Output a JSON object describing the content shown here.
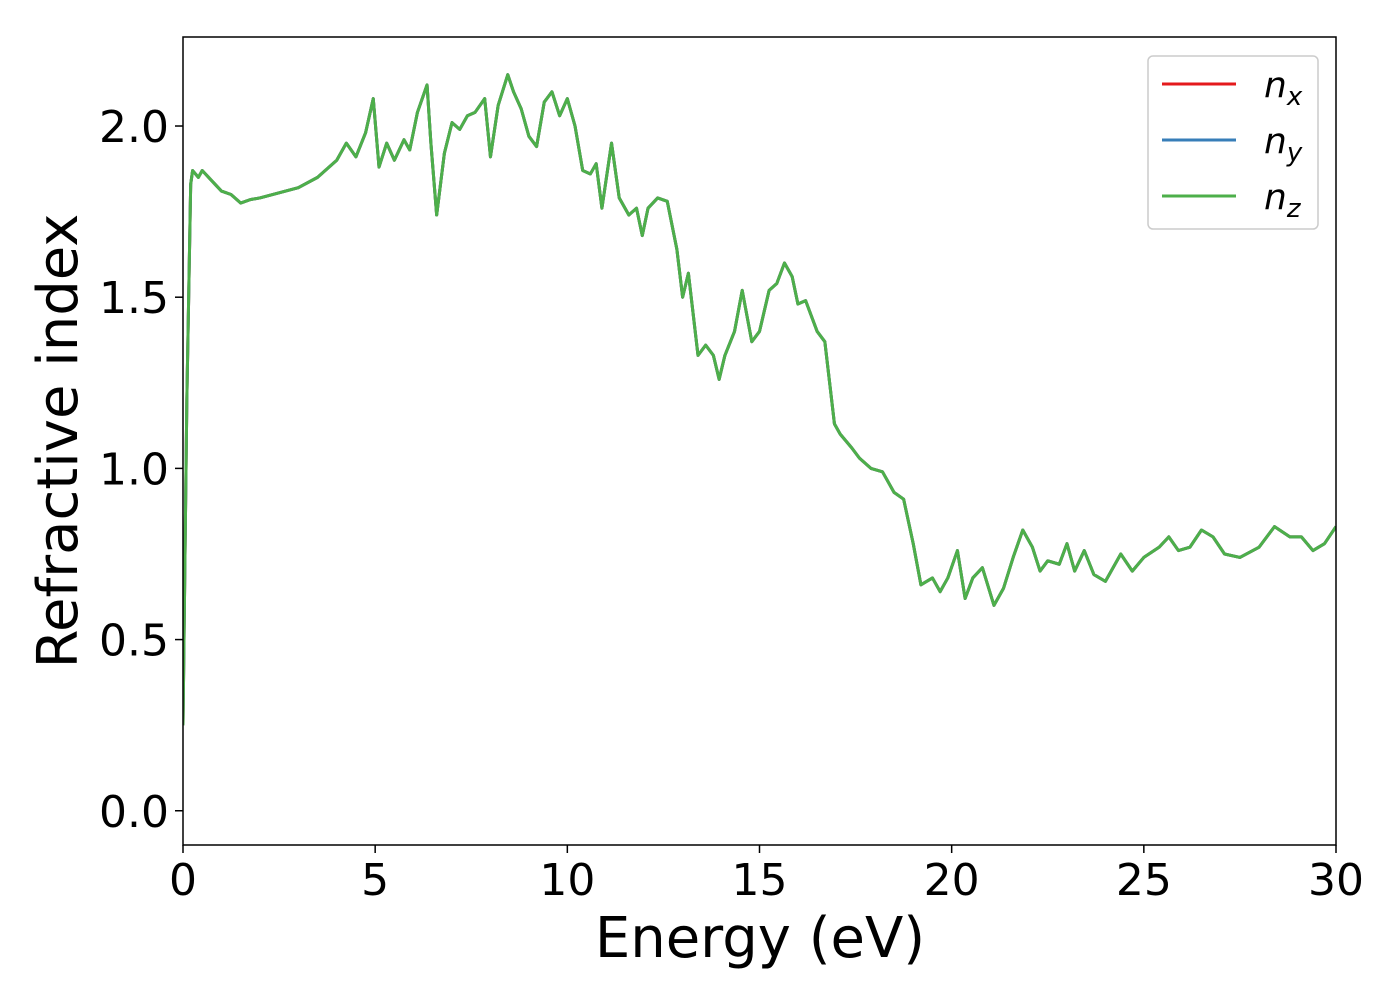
{
  "chart_data": {
    "type": "line",
    "xlabel": "Energy (eV)",
    "ylabel": "Refractive index",
    "x": [
      0,
      0.1,
      0.2,
      0.25,
      0.4,
      0.5,
      0.75,
      1.0,
      1.25,
      1.5,
      1.75,
      2.0,
      2.5,
      3.0,
      3.5,
      4.0,
      4.25,
      4.5,
      4.75,
      4.95,
      5.1,
      5.3,
      5.5,
      5.75,
      5.9,
      6.1,
      6.35,
      6.45,
      6.6,
      6.8,
      7.0,
      7.2,
      7.4,
      7.6,
      7.85,
      8.0,
      8.2,
      8.45,
      8.6,
      8.8,
      9.0,
      9.2,
      9.4,
      9.6,
      9.8,
      10.0,
      10.2,
      10.4,
      10.6,
      10.75,
      10.9,
      11.15,
      11.35,
      11.6,
      11.8,
      11.95,
      12.1,
      12.35,
      12.6,
      12.85,
      13.0,
      13.15,
      13.4,
      13.6,
      13.8,
      13.95,
      14.1,
      14.35,
      14.55,
      14.8,
      15.0,
      15.25,
      15.45,
      15.65,
      15.85,
      16.0,
      16.2,
      16.5,
      16.7,
      16.95,
      17.1,
      17.4,
      17.6,
      17.9,
      18.2,
      18.5,
      18.75,
      19.0,
      19.2,
      19.5,
      19.7,
      19.9,
      20.15,
      20.35,
      20.55,
      20.8,
      21.1,
      21.35,
      21.6,
      21.85,
      22.1,
      22.3,
      22.5,
      22.8,
      23.0,
      23.2,
      23.45,
      23.7,
      24.0,
      24.4,
      24.7,
      25.0,
      25.4,
      25.65,
      25.9,
      26.2,
      26.5,
      26.8,
      27.1,
      27.5,
      28.0,
      28.4,
      28.8,
      29.1,
      29.4,
      29.7,
      30.0
    ],
    "series": [
      {
        "name": "nx",
        "color": "#e41a1c",
        "values": [
          0.25,
          1.2,
          1.83,
          1.87,
          1.85,
          1.87,
          1.84,
          1.81,
          1.8,
          1.775,
          1.785,
          1.79,
          1.805,
          1.82,
          1.85,
          1.9,
          1.95,
          1.91,
          1.98,
          2.08,
          1.88,
          1.95,
          1.9,
          1.96,
          1.93,
          2.04,
          2.12,
          1.95,
          1.74,
          1.92,
          2.01,
          1.99,
          2.03,
          2.04,
          2.08,
          1.91,
          2.06,
          2.15,
          2.1,
          2.05,
          1.97,
          1.94,
          2.07,
          2.1,
          2.03,
          2.08,
          2.0,
          1.87,
          1.86,
          1.89,
          1.76,
          1.95,
          1.79,
          1.74,
          1.76,
          1.68,
          1.76,
          1.79,
          1.78,
          1.64,
          1.5,
          1.57,
          1.33,
          1.36,
          1.33,
          1.26,
          1.33,
          1.4,
          1.52,
          1.37,
          1.4,
          1.52,
          1.54,
          1.6,
          1.56,
          1.48,
          1.49,
          1.4,
          1.37,
          1.13,
          1.1,
          1.06,
          1.03,
          1.0,
          0.99,
          0.93,
          0.91,
          0.78,
          0.66,
          0.68,
          0.64,
          0.68,
          0.76,
          0.62,
          0.68,
          0.71,
          0.6,
          0.65,
          0.74,
          0.82,
          0.77,
          0.7,
          0.73,
          0.72,
          0.78,
          0.7,
          0.76,
          0.69,
          0.67,
          0.75,
          0.7,
          0.74,
          0.77,
          0.8,
          0.76,
          0.77,
          0.82,
          0.8,
          0.75,
          0.74,
          0.77,
          0.83,
          0.8,
          0.8,
          0.76,
          0.78,
          0.83
        ]
      },
      {
        "name": "ny",
        "color": "#377eb8",
        "values": [
          0.25,
          1.2,
          1.83,
          1.87,
          1.85,
          1.87,
          1.84,
          1.81,
          1.8,
          1.775,
          1.785,
          1.79,
          1.805,
          1.82,
          1.85,
          1.9,
          1.95,
          1.91,
          1.98,
          2.08,
          1.88,
          1.95,
          1.9,
          1.96,
          1.93,
          2.04,
          2.12,
          1.95,
          1.74,
          1.92,
          2.01,
          1.99,
          2.03,
          2.04,
          2.08,
          1.91,
          2.06,
          2.15,
          2.1,
          2.05,
          1.97,
          1.94,
          2.07,
          2.1,
          2.03,
          2.08,
          2.0,
          1.87,
          1.86,
          1.89,
          1.76,
          1.95,
          1.79,
          1.74,
          1.76,
          1.68,
          1.76,
          1.79,
          1.78,
          1.64,
          1.5,
          1.57,
          1.33,
          1.36,
          1.33,
          1.26,
          1.33,
          1.4,
          1.52,
          1.37,
          1.4,
          1.52,
          1.54,
          1.6,
          1.56,
          1.48,
          1.49,
          1.4,
          1.37,
          1.13,
          1.1,
          1.06,
          1.03,
          1.0,
          0.99,
          0.93,
          0.91,
          0.78,
          0.66,
          0.68,
          0.64,
          0.68,
          0.76,
          0.62,
          0.68,
          0.71,
          0.6,
          0.65,
          0.74,
          0.82,
          0.77,
          0.7,
          0.73,
          0.72,
          0.78,
          0.7,
          0.76,
          0.69,
          0.67,
          0.75,
          0.7,
          0.74,
          0.77,
          0.8,
          0.76,
          0.77,
          0.82,
          0.8,
          0.75,
          0.74,
          0.77,
          0.83,
          0.8,
          0.8,
          0.76,
          0.78,
          0.83
        ]
      },
      {
        "name": "nz",
        "color": "#4daf4a",
        "values": [
          0.25,
          1.2,
          1.83,
          1.87,
          1.85,
          1.87,
          1.84,
          1.81,
          1.8,
          1.775,
          1.785,
          1.79,
          1.805,
          1.82,
          1.85,
          1.9,
          1.95,
          1.91,
          1.98,
          2.08,
          1.88,
          1.95,
          1.9,
          1.96,
          1.93,
          2.04,
          2.12,
          1.95,
          1.74,
          1.92,
          2.01,
          1.99,
          2.03,
          2.04,
          2.08,
          1.91,
          2.06,
          2.15,
          2.1,
          2.05,
          1.97,
          1.94,
          2.07,
          2.1,
          2.03,
          2.08,
          2.0,
          1.87,
          1.86,
          1.89,
          1.76,
          1.95,
          1.79,
          1.74,
          1.76,
          1.68,
          1.76,
          1.79,
          1.78,
          1.64,
          1.5,
          1.57,
          1.33,
          1.36,
          1.33,
          1.26,
          1.33,
          1.4,
          1.52,
          1.37,
          1.4,
          1.52,
          1.54,
          1.6,
          1.56,
          1.48,
          1.49,
          1.4,
          1.37,
          1.13,
          1.1,
          1.06,
          1.03,
          1.0,
          0.99,
          0.93,
          0.91,
          0.78,
          0.66,
          0.68,
          0.64,
          0.68,
          0.76,
          0.62,
          0.68,
          0.71,
          0.6,
          0.65,
          0.74,
          0.82,
          0.77,
          0.7,
          0.73,
          0.72,
          0.78,
          0.7,
          0.76,
          0.69,
          0.67,
          0.75,
          0.7,
          0.74,
          0.77,
          0.8,
          0.76,
          0.77,
          0.82,
          0.8,
          0.75,
          0.74,
          0.77,
          0.83,
          0.8,
          0.8,
          0.76,
          0.78,
          0.83
        ]
      }
    ],
    "xlim": [
      0,
      30
    ],
    "xticks": [
      0,
      5,
      10,
      15,
      20,
      25,
      30
    ],
    "ylim": [
      -0.1,
      2.26
    ],
    "yticks": [
      {
        "value": 0,
        "label": "0.0"
      },
      0.5,
      {
        "value": 1,
        "label": "1.0"
      },
      1.5,
      {
        "value": 2,
        "label": "2.0"
      }
    ],
    "grid": false,
    "legend": "upper right"
  }
}
